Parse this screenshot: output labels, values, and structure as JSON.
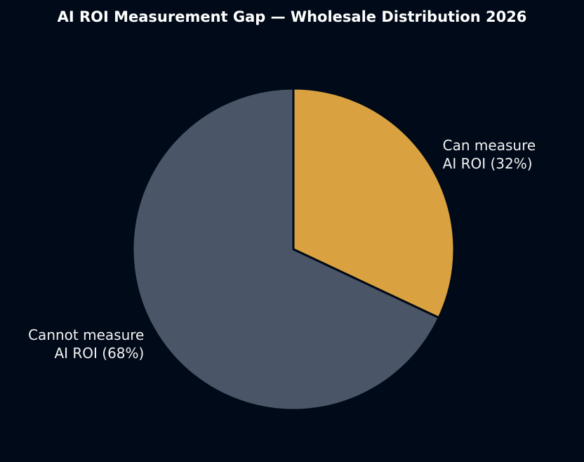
{
  "chart_data": {
    "type": "pie",
    "title": "AI ROI Measurement Gap — Wholesale Distribution 2026",
    "categories": [
      "Can measure\nAI ROI (32%)",
      "Cannot measure\nAI ROI (68%)"
    ],
    "values": [
      32,
      68
    ],
    "colors": [
      "#d9a13f",
      "#4a5567"
    ]
  }
}
